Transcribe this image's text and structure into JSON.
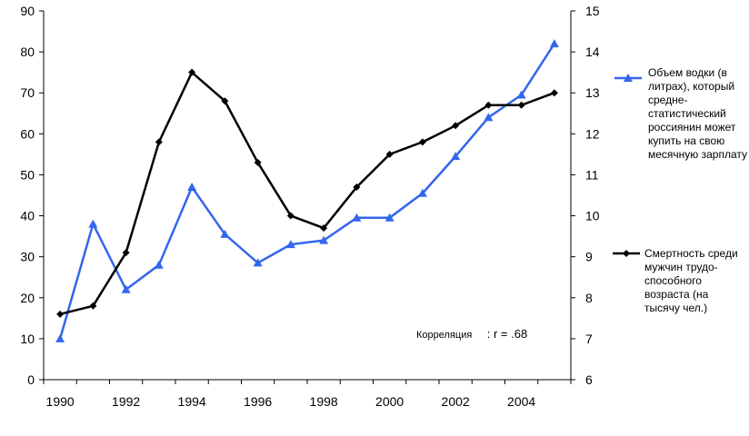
{
  "chart_data": {
    "type": "line",
    "x": [
      1990,
      1991,
      1992,
      1993,
      1994,
      1995,
      1996,
      1997,
      1998,
      1999,
      2000,
      2001,
      2002,
      2003,
      2004,
      2005
    ],
    "x_ticks": [
      "1990",
      "1992",
      "1994",
      "1996",
      "1998",
      "2000",
      "2002",
      "2004"
    ],
    "y_left_ticks": [
      "0",
      "10",
      "20",
      "30",
      "40",
      "50",
      "60",
      "70",
      "80",
      "90"
    ],
    "y_right_ticks": [
      "6",
      "7",
      "8",
      "9",
      "10",
      "11",
      "12",
      "13",
      "14",
      "15"
    ],
    "ylim_left": [
      0,
      90
    ],
    "ylim_right": [
      6,
      15
    ],
    "grid": false,
    "legend_position": "right",
    "series": [
      {
        "name": "Объем водки (в литрах), который средне-статистический россиянин может купить на  свою месячную зарплату",
        "axis": "left",
        "color": "#3366ee",
        "marker": "triangle",
        "values": [
          10,
          38,
          22,
          28,
          47,
          35.5,
          28.5,
          33,
          34,
          39.5,
          39.5,
          45.5,
          54.5,
          64,
          69.5,
          82
        ]
      },
      {
        "name": "Смертность среди мужчин трудо-способного возраста (на тысячу чел.)",
        "axis": "right",
        "color": "#000000",
        "marker": "diamond",
        "values": [
          7.6,
          7.8,
          9.1,
          11.8,
          13.5,
          12.8,
          11.3,
          10.0,
          9.7,
          10.7,
          11.5,
          11.8,
          12.2,
          12.7,
          12.7,
          13.0
        ]
      }
    ],
    "annotation": {
      "label": "Корреляция",
      "value": ": r = .68"
    }
  }
}
